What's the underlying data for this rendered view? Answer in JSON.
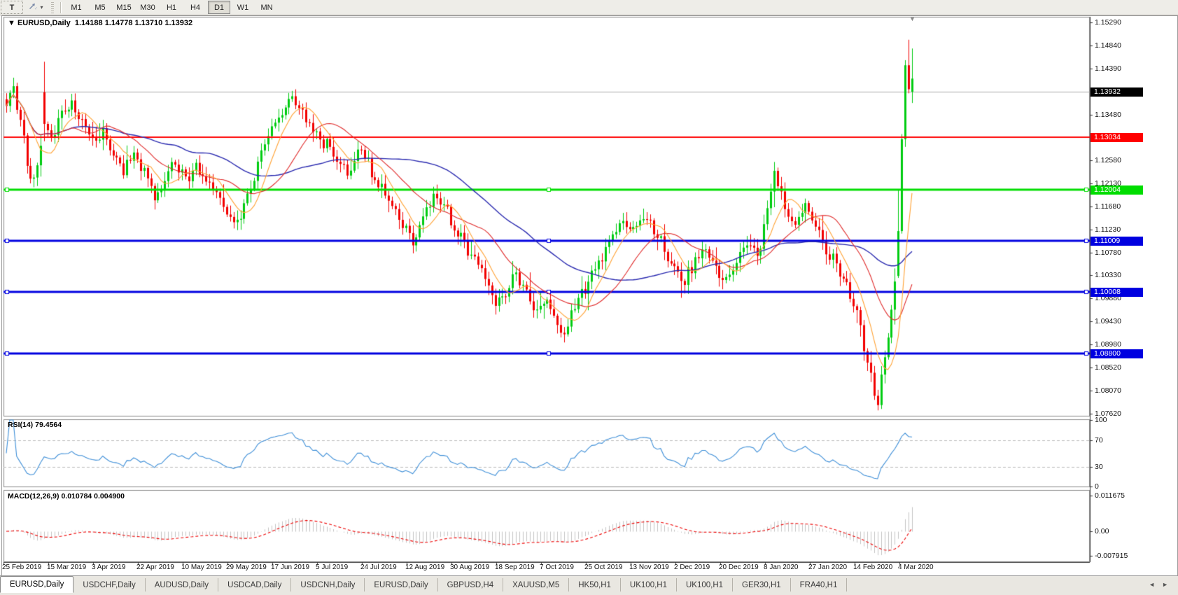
{
  "toolbar": {
    "text_tool_label": "T",
    "style_tool_caret": "▾",
    "timeframes": [
      {
        "label": "M1",
        "active": false
      },
      {
        "label": "M5",
        "active": false
      },
      {
        "label": "M15",
        "active": false
      },
      {
        "label": "M30",
        "active": false
      },
      {
        "label": "H1",
        "active": false
      },
      {
        "label": "H4",
        "active": false
      },
      {
        "label": "D1",
        "active": true
      },
      {
        "label": "W1",
        "active": false
      },
      {
        "label": "MN",
        "active": false
      }
    ]
  },
  "chart_header": {
    "collapse_arrow": "▼",
    "symbol": "EURUSD,Daily",
    "ohlc_text": "1.14188 1.14778 1.13710 1.13932"
  },
  "chart_data": {
    "type": "candlestick",
    "symbol": "EURUSD",
    "timeframe": "Daily",
    "current_bar": {
      "open": 1.14188,
      "high": 1.14778,
      "low": 1.1371,
      "close": 1.13932
    },
    "y_axis": {
      "ticks": [
        "1.15290",
        "1.14840",
        "1.14390",
        "1.13480",
        "1.12580",
        "1.12130",
        "1.11680",
        "1.11230",
        "1.10780",
        "1.10330",
        "1.09880",
        "1.09430",
        "1.08980",
        "1.08520",
        "1.08070",
        "1.07620"
      ],
      "range": [
        1.0762,
        1.154
      ]
    },
    "x_axis": {
      "dates": [
        "25 Feb 2019",
        "15 Mar 2019",
        "3 Apr 2019",
        "22 Apr 2019",
        "10 May 2019",
        "29 May 2019",
        "17 Jun 2019",
        "5 Jul 2019",
        "24 Jul 2019",
        "12 Aug 2019",
        "30 Aug 2019",
        "18 Sep 2019",
        "7 Oct 2019",
        "25 Oct 2019",
        "13 Nov 2019",
        "2 Dec 2019",
        "20 Dec 2019",
        "8 Jan 2020",
        "27 Jan 2020",
        "14 Feb 2020",
        "4 Mar 2020"
      ]
    },
    "current_price_line": {
      "price": 1.13932,
      "color": "#ababab",
      "badge_bg": "#000000"
    },
    "horizontal_levels": [
      {
        "price": 1.13034,
        "label": "1.13034",
        "color": "#ff0000",
        "width": 2,
        "handles": false
      },
      {
        "price": 1.12004,
        "label": "1.12004",
        "color": "#00dd00",
        "width": 3,
        "handles": true
      },
      {
        "price": 1.11009,
        "label": "1.11009",
        "color": "#0000e0",
        "width": 3,
        "handles": true
      },
      {
        "price": 1.10008,
        "label": "1.10008",
        "color": "#0000e0",
        "width": 3,
        "handles": true
      },
      {
        "price": 1.088,
        "label": "1.08800",
        "color": "#0000e0",
        "width": 3,
        "handles": true
      }
    ],
    "colors": {
      "up": "#00cc11",
      "down": "#f20000",
      "background": "#ffffff",
      "axis_text": "#111111"
    },
    "moving_averages": [
      {
        "name": "fast",
        "period": 8,
        "color": "#ffa233"
      },
      {
        "name": "medium",
        "period": 20,
        "color": "#e02828"
      },
      {
        "name": "slow",
        "period": 50,
        "color": "#2a2ab0"
      }
    ],
    "price_path_anchors": [
      [
        0,
        1.1365
      ],
      [
        2,
        1.1405
      ],
      [
        4,
        1.1335
      ],
      [
        6,
        1.1255
      ],
      [
        8,
        1.1215
      ],
      [
        10,
        1.1295
      ],
      [
        11,
        1.133
      ],
      [
        13,
        1.1305
      ],
      [
        16,
        1.135
      ],
      [
        19,
        1.1368
      ],
      [
        22,
        1.1335
      ],
      [
        25,
        1.1295
      ],
      [
        28,
        1.1312
      ],
      [
        31,
        1.127
      ],
      [
        34,
        1.1242
      ],
      [
        37,
        1.1272
      ],
      [
        40,
        1.1232
      ],
      [
        43,
        1.1185
      ],
      [
        46,
        1.1228
      ],
      [
        49,
        1.1252
      ],
      [
        52,
        1.1222
      ],
      [
        55,
        1.125
      ],
      [
        58,
        1.1226
      ],
      [
        61,
        1.1192
      ],
      [
        64,
        1.1162
      ],
      [
        67,
        1.1136
      ],
      [
        70,
        1.119
      ],
      [
        73,
        1.1252
      ],
      [
        76,
        1.1308
      ],
      [
        79,
        1.1342
      ],
      [
        83,
        1.1392
      ],
      [
        87,
        1.134
      ],
      [
        91,
        1.1302
      ],
      [
        95,
        1.1272
      ],
      [
        99,
        1.1242
      ],
      [
        103,
        1.1278
      ],
      [
        107,
        1.1222
      ],
      [
        111,
        1.1182
      ],
      [
        115,
        1.1132
      ],
      [
        118,
        1.1106
      ],
      [
        121,
        1.1142
      ],
      [
        124,
        1.1198
      ],
      [
        127,
        1.1172
      ],
      [
        130,
        1.1122
      ],
      [
        133,
        1.1092
      ],
      [
        136,
        1.1062
      ],
      [
        139,
        1.1032
      ],
      [
        142,
        1.0986
      ],
      [
        145,
        1.1002
      ],
      [
        148,
        1.1042
      ],
      [
        151,
        1.1002
      ],
      [
        154,
        1.0962
      ],
      [
        157,
        1.0992
      ],
      [
        160,
        1.0942
      ],
      [
        162,
        1.0906
      ],
      [
        164,
        1.0962
      ],
      [
        167,
        1.0992
      ],
      [
        170,
        1.1032
      ],
      [
        173,
        1.1072
      ],
      [
        176,
        1.1112
      ],
      [
        179,
        1.1142
      ],
      [
        182,
        1.1112
      ],
      [
        185,
        1.1152
      ],
      [
        188,
        1.1122
      ],
      [
        191,
        1.1082
      ],
      [
        194,
        1.1052
      ],
      [
        197,
        1.1022
      ],
      [
        200,
        1.1062
      ],
      [
        203,
        1.1082
      ],
      [
        206,
        1.1052
      ],
      [
        209,
        1.1022
      ],
      [
        212,
        1.1062
      ],
      [
        215,
        1.1102
      ],
      [
        218,
        1.1072
      ],
      [
        221,
        1.1152
      ],
      [
        223,
        1.1232
      ],
      [
        226,
        1.1172
      ],
      [
        229,
        1.1132
      ],
      [
        232,
        1.1162
      ],
      [
        235,
        1.1122
      ],
      [
        238,
        1.1082
      ],
      [
        241,
        1.1052
      ],
      [
        244,
        1.1012
      ],
      [
        246,
        1.0972
      ],
      [
        248,
        1.0932
      ],
      [
        250,
        1.0862
      ],
      [
        252,
        1.08
      ],
      [
        253,
        1.079
      ],
      [
        254,
        1.0832
      ],
      [
        255,
        1.0858
      ],
      [
        256,
        1.0908
      ],
      [
        257,
        1.0962
      ],
      [
        258,
        1.1032
      ],
      [
        259,
        1.112
      ],
      [
        260,
        1.13
      ],
      [
        261,
        1.1445
      ],
      [
        262,
        1.1398
      ],
      [
        263,
        1.13932
      ]
    ],
    "ohlc_overrides": {
      "11": [
        1.1392,
        1.1452,
        1.1296,
        1.133
      ],
      "259": [
        1.1032,
        1.12,
        1.1028,
        1.112,
        "g"
      ],
      "260": [
        1.112,
        1.131,
        1.1115,
        1.13,
        "g"
      ],
      "261": [
        1.13,
        1.1455,
        1.1285,
        1.1445,
        "g"
      ],
      "262": [
        1.1445,
        1.1495,
        1.139,
        1.1398
      ],
      "263": [
        1.14188,
        1.14778,
        1.1371,
        1.13932,
        "g"
      ]
    },
    "rsi": {
      "label": "RSI(14)",
      "value": "79.4564",
      "period": 14,
      "axis_ticks": [
        "100",
        "70",
        "30",
        "0"
      ],
      "levels": [
        70,
        30
      ],
      "line_color": "#3e8fd8",
      "level_line_color": "#bdbdbd"
    },
    "macd": {
      "label": "MACD(12,26,9)",
      "values_text": "0.010784 0.004900",
      "fast": 12,
      "slow": 26,
      "signal": 9,
      "axis_ticks": [
        "0.011675",
        "0.00",
        "-0.007915"
      ],
      "axis_tick_values": [
        0.011675,
        0.0,
        -0.007915
      ],
      "histogram_color": "#c4c4c4",
      "signal_color": "#ee0000"
    }
  },
  "tabs": {
    "items": [
      {
        "label": "EURUSD,Daily",
        "active": true
      },
      {
        "label": "USDCHF,Daily",
        "active": false
      },
      {
        "label": "AUDUSD,Daily",
        "active": false
      },
      {
        "label": "USDCAD,Daily",
        "active": false
      },
      {
        "label": "USDCNH,Daily",
        "active": false
      },
      {
        "label": "EURUSD,Daily",
        "active": false
      },
      {
        "label": "GBPUSD,H4",
        "active": false
      },
      {
        "label": "XAUUSD,M5",
        "active": false
      },
      {
        "label": "HK50,H1",
        "active": false
      },
      {
        "label": "UK100,H1",
        "active": false
      },
      {
        "label": "UK100,H1",
        "active": false
      },
      {
        "label": "GER30,H1",
        "active": false
      },
      {
        "label": "FRA40,H1",
        "active": false
      }
    ],
    "nav_left": "◄",
    "nav_right": "►"
  }
}
